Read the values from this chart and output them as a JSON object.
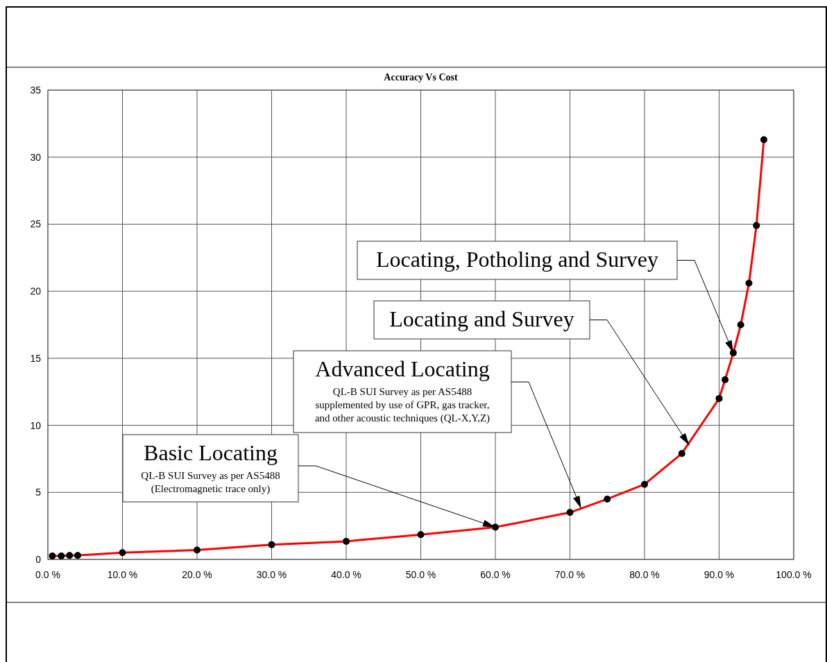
{
  "chart_data": {
    "type": "line",
    "title": "Accuracy Vs Cost",
    "x": [
      0.6,
      1.8,
      2.9,
      4.0,
      10,
      20,
      30,
      40,
      50,
      60,
      70,
      75,
      80,
      85,
      90,
      90.8,
      91.9,
      92.9,
      94.0,
      95.0,
      96.0
    ],
    "series": [
      {
        "color": "#ff0000",
        "values": [
          0.26,
          0.26,
          0.3,
          0.3,
          0.5,
          0.7,
          1.1,
          1.35,
          1.85,
          2.4,
          3.5,
          4.5,
          5.6,
          7.9,
          12.0,
          13.4,
          15.4,
          17.5,
          20.6,
          24.9,
          31.3
        ]
      }
    ],
    "xlim": [
      0,
      100
    ],
    "xticks": [
      {
        "value": 0,
        "label": "0.0 %"
      },
      {
        "value": 10,
        "label": "10.0 %"
      },
      {
        "value": 20,
        "label": "20.0 %"
      },
      {
        "value": 30,
        "label": "30.0 %"
      },
      {
        "value": 40,
        "label": "40.0 %"
      },
      {
        "value": 50,
        "label": "50.0 %"
      },
      {
        "value": 60,
        "label": "60.0 %"
      },
      {
        "value": 70,
        "label": "70.0 %"
      },
      {
        "value": 80,
        "label": "80.0 %"
      },
      {
        "value": 90,
        "label": "90.0 %"
      },
      {
        "value": 100,
        "label": "100.0 %"
      }
    ],
    "ylim": [
      0,
      35
    ],
    "yticks": [
      0,
      5,
      10,
      15,
      20,
      25,
      30,
      35
    ],
    "grid": true,
    "marker": "circle",
    "line_style": "solid",
    "annotations": [
      {
        "text": "Basic Locating\nQL-B SUI Survey as per AS5488\n(Electromagnetic trace only)",
        "x": 60,
        "y": 2.4
      },
      {
        "text": "Advanced Locating\nQL-B SUI Survey as per AS5488\nsupplemented by use of GPR, gas tracker,\nand other acoustic techniques (QL-X,Y,Z)",
        "x": 71.5,
        "y": 3.8
      },
      {
        "text": "Locating and Survey",
        "x": 86,
        "y": 8.5
      },
      {
        "text": "Locating, Potholing and Survey",
        "x": 91.9,
        "y": 15.4
      }
    ]
  }
}
